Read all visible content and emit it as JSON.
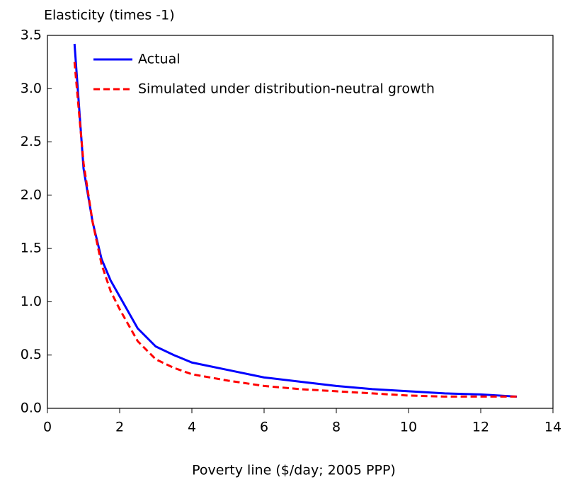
{
  "chart_data": {
    "type": "line",
    "y_axis_label": "Elasticity (times -1)",
    "x_axis_label": "Poverty line  ($/day; 2005 PPP)",
    "xlim": [
      0,
      14
    ],
    "xticks": [
      0,
      2,
      4,
      6,
      8,
      10,
      12,
      14
    ],
    "ylim": [
      0,
      3.5
    ],
    "yticks": [
      {
        "value": 0,
        "label": "0.0"
      },
      {
        "value": 0.5,
        "label": "0.5"
      },
      {
        "value": 1,
        "label": "1.0"
      },
      {
        "value": 1.5,
        "label": "1.5"
      },
      {
        "value": 2,
        "label": "2.0"
      },
      {
        "value": 2.5,
        "label": "2.5"
      },
      {
        "value": 3,
        "label": "3.0"
      },
      {
        "value": 3.5,
        "label": "3.5"
      }
    ],
    "x": [
      0.75,
      1.0,
      1.25,
      1.5,
      1.75,
      2.0,
      2.5,
      3.0,
      3.5,
      4.0,
      5.0,
      6.0,
      7.0,
      8.0,
      9.0,
      10,
      11,
      12,
      13
    ],
    "legend_position": "upper left",
    "series": [
      {
        "name": "Actual",
        "color": "#0000ff",
        "dash": false,
        "values": [
          3.42,
          2.25,
          1.75,
          1.4,
          1.2,
          1.05,
          0.75,
          0.58,
          0.5,
          0.43,
          0.36,
          0.29,
          0.25,
          0.21,
          0.18,
          0.16,
          0.14,
          0.13,
          0.11
        ]
      },
      {
        "name": "Simulated under distribution-neutral growth",
        "color": "#ff0000",
        "dash": true,
        "values": [
          3.25,
          2.3,
          1.75,
          1.35,
          1.1,
          0.93,
          0.63,
          0.46,
          0.38,
          0.32,
          0.26,
          0.21,
          0.18,
          0.16,
          0.14,
          0.12,
          0.11,
          0.11,
          0.11
        ]
      }
    ]
  }
}
